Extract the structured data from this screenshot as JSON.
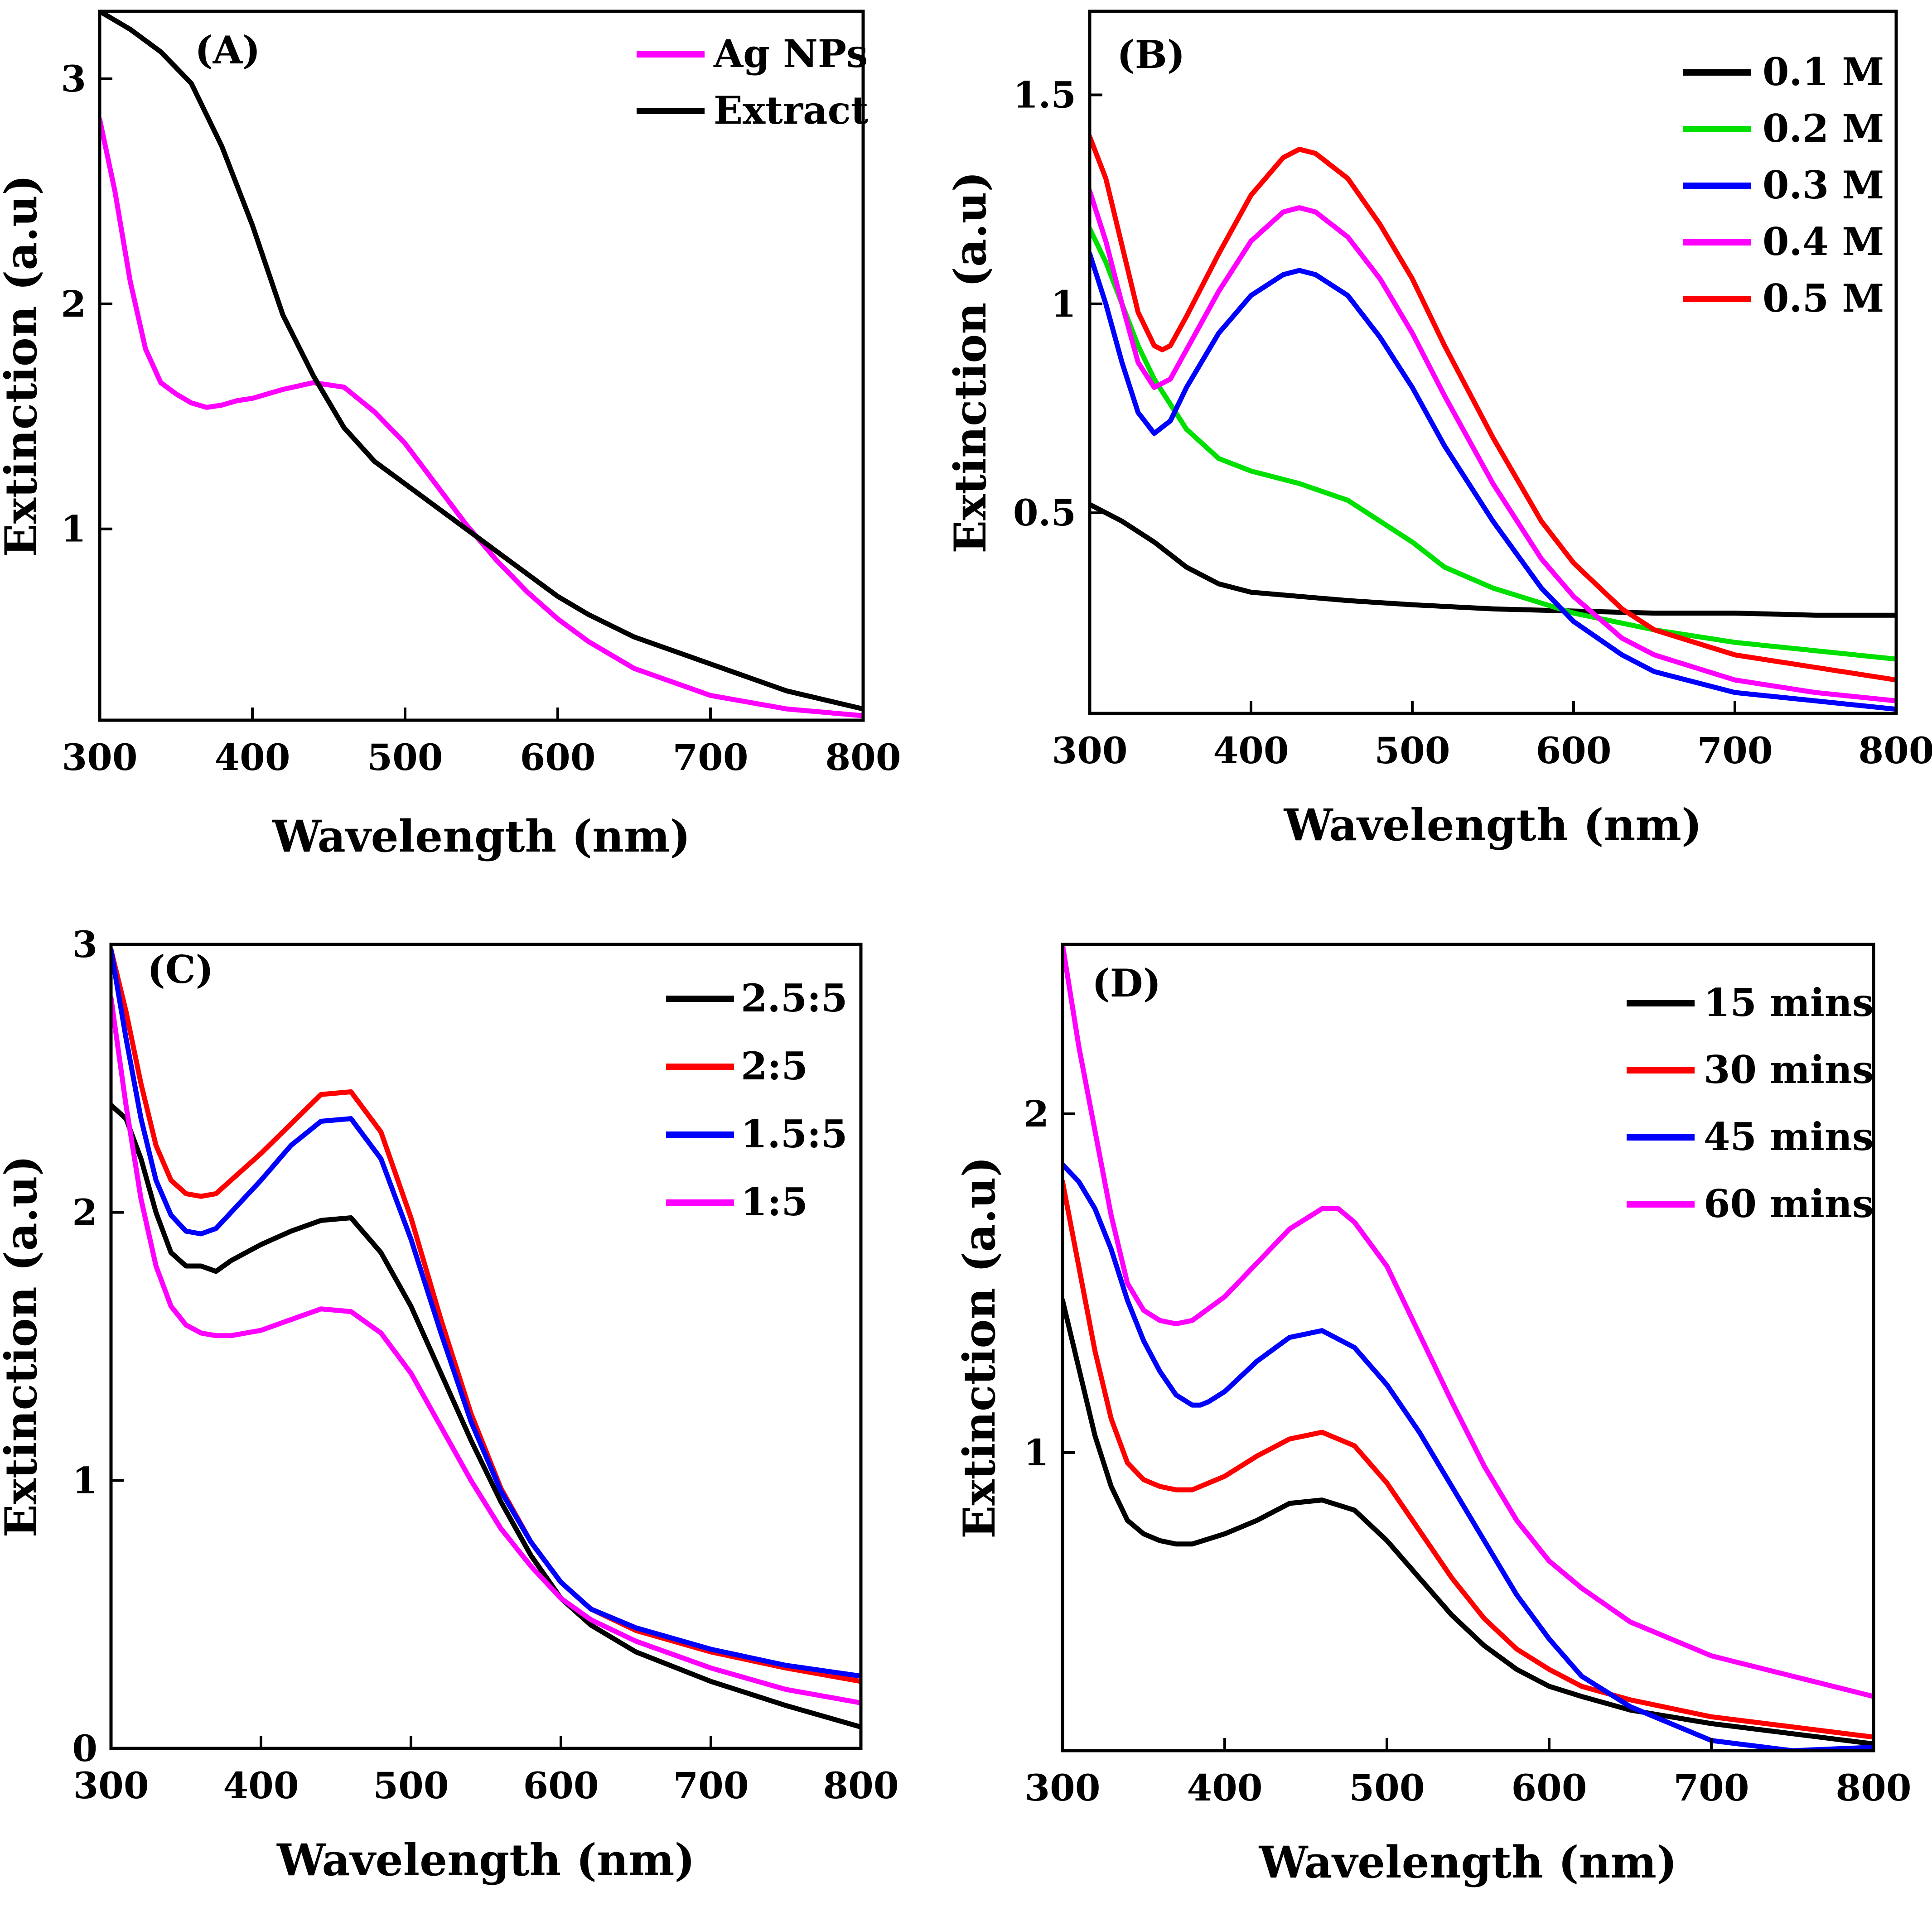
{
  "chart_data": [
    {
      "type": "line",
      "panel": "(A)",
      "title": "",
      "xlabel": "Wavelength (nm)",
      "ylabel": "Extinction (a.u)",
      "xlim": [
        300,
        800
      ],
      "ylim": [
        0.15,
        3.3
      ],
      "xticks": [
        300,
        400,
        500,
        600,
        700,
        800
      ],
      "yticks": [
        1,
        2,
        3
      ],
      "legend_position": "top-right",
      "series": [
        {
          "name": "Ag NPs",
          "color": "#ff00ff",
          "x": [
            300,
            310,
            320,
            330,
            340,
            350,
            360,
            370,
            380,
            390,
            400,
            420,
            440,
            460,
            480,
            500,
            520,
            540,
            560,
            580,
            600,
            620,
            650,
            700,
            750,
            800
          ],
          "y": [
            2.82,
            2.5,
            2.1,
            1.8,
            1.65,
            1.6,
            1.56,
            1.54,
            1.55,
            1.57,
            1.58,
            1.62,
            1.65,
            1.63,
            1.52,
            1.38,
            1.2,
            1.02,
            0.86,
            0.72,
            0.6,
            0.5,
            0.38,
            0.26,
            0.2,
            0.17
          ]
        },
        {
          "name": "Extract",
          "color": "#000000",
          "x": [
            300,
            320,
            340,
            360,
            380,
            400,
            420,
            440,
            460,
            480,
            500,
            520,
            540,
            560,
            580,
            600,
            620,
            650,
            700,
            750,
            800
          ],
          "y": [
            3.3,
            3.22,
            3.12,
            2.98,
            2.7,
            2.35,
            1.95,
            1.68,
            1.45,
            1.3,
            1.2,
            1.1,
            1.0,
            0.9,
            0.8,
            0.7,
            0.62,
            0.52,
            0.4,
            0.28,
            0.2
          ]
        }
      ]
    },
    {
      "type": "line",
      "panel": "(B)",
      "title": "",
      "xlabel": "Wavelength (nm)",
      "ylabel": "Extinction (a.u)",
      "xlim": [
        300,
        800
      ],
      "ylim": [
        0.02,
        1.7
      ],
      "xticks": [
        300,
        400,
        500,
        600,
        700,
        800
      ],
      "yticks": [
        0.5,
        1.0,
        1.5
      ],
      "legend_position": "top-right",
      "series": [
        {
          "name": "0.1 M",
          "color": "#000000",
          "x": [
            300,
            320,
            340,
            360,
            380,
            400,
            430,
            460,
            500,
            550,
            600,
            650,
            700,
            750,
            800
          ],
          "y": [
            0.52,
            0.48,
            0.43,
            0.37,
            0.33,
            0.31,
            0.3,
            0.29,
            0.28,
            0.27,
            0.265,
            0.26,
            0.26,
            0.255,
            0.255
          ]
        },
        {
          "name": "0.2 M",
          "color": "#00e000",
          "x": [
            300,
            310,
            320,
            330,
            340,
            350,
            360,
            380,
            400,
            430,
            460,
            480,
            500,
            520,
            550,
            600,
            650,
            700,
            750,
            800
          ],
          "y": [
            1.18,
            1.1,
            1.0,
            0.9,
            0.82,
            0.76,
            0.7,
            0.63,
            0.6,
            0.57,
            0.53,
            0.48,
            0.43,
            0.37,
            0.32,
            0.26,
            0.22,
            0.19,
            0.17,
            0.15
          ]
        },
        {
          "name": "0.3 M",
          "color": "#0000ff",
          "x": [
            300,
            310,
            320,
            330,
            340,
            350,
            360,
            380,
            400,
            420,
            430,
            440,
            460,
            480,
            500,
            520,
            550,
            580,
            600,
            630,
            650,
            700,
            750,
            800
          ],
          "y": [
            1.12,
            1.0,
            0.86,
            0.74,
            0.69,
            0.72,
            0.8,
            0.93,
            1.02,
            1.07,
            1.08,
            1.07,
            1.02,
            0.92,
            0.8,
            0.66,
            0.48,
            0.32,
            0.24,
            0.16,
            0.12,
            0.07,
            0.05,
            0.03
          ]
        },
        {
          "name": "0.4 M",
          "color": "#ff00ff",
          "x": [
            300,
            310,
            320,
            330,
            340,
            350,
            360,
            380,
            400,
            420,
            430,
            440,
            460,
            480,
            500,
            520,
            550,
            580,
            600,
            630,
            650,
            700,
            750,
            800
          ],
          "y": [
            1.27,
            1.15,
            1.0,
            0.86,
            0.8,
            0.82,
            0.89,
            1.03,
            1.15,
            1.22,
            1.23,
            1.22,
            1.16,
            1.06,
            0.93,
            0.78,
            0.57,
            0.39,
            0.3,
            0.2,
            0.16,
            0.1,
            0.07,
            0.05
          ]
        },
        {
          "name": "0.5 M",
          "color": "#ff0000",
          "x": [
            300,
            310,
            320,
            330,
            340,
            345,
            350,
            360,
            380,
            400,
            420,
            430,
            440,
            460,
            480,
            500,
            520,
            550,
            580,
            600,
            630,
            650,
            700,
            750,
            800
          ],
          "y": [
            1.4,
            1.3,
            1.14,
            0.98,
            0.9,
            0.89,
            0.9,
            0.97,
            1.12,
            1.26,
            1.35,
            1.37,
            1.36,
            1.3,
            1.19,
            1.06,
            0.9,
            0.68,
            0.48,
            0.38,
            0.27,
            0.22,
            0.16,
            0.13,
            0.1
          ]
        }
      ]
    },
    {
      "type": "line",
      "panel": "(C)",
      "title": "",
      "xlabel": "Wavelength (nm)",
      "ylabel": "Extinction (a.u)",
      "xlim": [
        300,
        800
      ],
      "ylim": [
        0,
        3
      ],
      "xticks": [
        300,
        400,
        500,
        600,
        700,
        800
      ],
      "yticks": [
        0,
        1,
        2,
        3
      ],
      "legend_position": "top-right",
      "series": [
        {
          "name": "2.5:5",
          "color": "#000000",
          "x": [
            300,
            310,
            320,
            330,
            340,
            350,
            360,
            370,
            380,
            390,
            400,
            420,
            440,
            460,
            480,
            500,
            520,
            540,
            560,
            580,
            600,
            620,
            650,
            700,
            750,
            800
          ],
          "y": [
            2.4,
            2.35,
            2.2,
            2.0,
            1.85,
            1.8,
            1.8,
            1.78,
            1.82,
            1.85,
            1.88,
            1.93,
            1.97,
            1.98,
            1.85,
            1.65,
            1.4,
            1.15,
            0.92,
            0.72,
            0.56,
            0.46,
            0.36,
            0.25,
            0.16,
            0.08
          ]
        },
        {
          "name": "2:5",
          "color": "#ff0000",
          "x": [
            300,
            310,
            320,
            330,
            340,
            350,
            360,
            370,
            380,
            400,
            420,
            440,
            460,
            480,
            500,
            520,
            540,
            560,
            580,
            600,
            620,
            650,
            700,
            750,
            800
          ],
          "y": [
            2.98,
            2.75,
            2.48,
            2.25,
            2.12,
            2.07,
            2.06,
            2.07,
            2.12,
            2.22,
            2.33,
            2.44,
            2.45,
            2.3,
            1.98,
            1.6,
            1.25,
            0.97,
            0.77,
            0.62,
            0.52,
            0.44,
            0.36,
            0.3,
            0.25
          ]
        },
        {
          "name": "1.5:5",
          "color": "#0000ff",
          "x": [
            300,
            310,
            320,
            330,
            340,
            350,
            360,
            370,
            380,
            400,
            420,
            440,
            460,
            480,
            500,
            520,
            540,
            560,
            580,
            600,
            620,
            650,
            700,
            750,
            800
          ],
          "y": [
            2.98,
            2.65,
            2.35,
            2.12,
            1.99,
            1.93,
            1.92,
            1.94,
            2.0,
            2.12,
            2.25,
            2.34,
            2.35,
            2.2,
            1.9,
            1.55,
            1.22,
            0.96,
            0.77,
            0.62,
            0.52,
            0.45,
            0.37,
            0.31,
            0.27
          ]
        },
        {
          "name": "1:5",
          "color": "#ff00ff",
          "x": [
            300,
            310,
            320,
            330,
            340,
            350,
            360,
            370,
            380,
            400,
            420,
            440,
            460,
            480,
            500,
            520,
            540,
            560,
            580,
            600,
            620,
            650,
            700,
            750,
            800
          ],
          "y": [
            2.8,
            2.4,
            2.05,
            1.8,
            1.65,
            1.58,
            1.55,
            1.54,
            1.54,
            1.56,
            1.6,
            1.64,
            1.63,
            1.55,
            1.4,
            1.2,
            1.0,
            0.82,
            0.68,
            0.56,
            0.48,
            0.4,
            0.3,
            0.22,
            0.17
          ]
        }
      ]
    },
    {
      "type": "line",
      "panel": "(D)",
      "title": "",
      "xlabel": "Wavelength (nm)",
      "ylabel": "Extinction (a.u)",
      "xlim": [
        300,
        800
      ],
      "ylim": [
        0.12,
        2.5
      ],
      "xticks": [
        300,
        400,
        500,
        600,
        700,
        800
      ],
      "yticks": [
        1,
        2
      ],
      "legend_position": "top-right",
      "series": [
        {
          "name": "15 mins",
          "color": "#000000",
          "x": [
            300,
            310,
            320,
            330,
            340,
            350,
            360,
            370,
            380,
            400,
            420,
            440,
            460,
            480,
            500,
            520,
            540,
            560,
            580,
            600,
            620,
            650,
            700,
            750,
            800
          ],
          "y": [
            1.45,
            1.25,
            1.05,
            0.9,
            0.8,
            0.76,
            0.74,
            0.73,
            0.73,
            0.76,
            0.8,
            0.85,
            0.86,
            0.83,
            0.74,
            0.63,
            0.52,
            0.43,
            0.36,
            0.31,
            0.28,
            0.24,
            0.2,
            0.17,
            0.14
          ]
        },
        {
          "name": "30 mins",
          "color": "#ff0000",
          "x": [
            300,
            310,
            320,
            330,
            340,
            350,
            360,
            370,
            380,
            400,
            420,
            440,
            460,
            480,
            500,
            520,
            540,
            560,
            580,
            600,
            620,
            650,
            700,
            750,
            800
          ],
          "y": [
            1.8,
            1.55,
            1.3,
            1.1,
            0.97,
            0.92,
            0.9,
            0.89,
            0.89,
            0.93,
            0.99,
            1.04,
            1.06,
            1.02,
            0.91,
            0.77,
            0.63,
            0.51,
            0.42,
            0.36,
            0.31,
            0.27,
            0.22,
            0.19,
            0.16
          ]
        },
        {
          "name": "45 mins",
          "color": "#0000ff",
          "x": [
            300,
            310,
            320,
            330,
            340,
            350,
            360,
            370,
            380,
            385,
            390,
            400,
            420,
            440,
            460,
            480,
            500,
            520,
            540,
            560,
            580,
            600,
            620,
            650,
            700,
            750,
            800
          ],
          "y": [
            1.85,
            1.8,
            1.72,
            1.6,
            1.45,
            1.33,
            1.24,
            1.17,
            1.14,
            1.14,
            1.15,
            1.18,
            1.27,
            1.34,
            1.36,
            1.31,
            1.2,
            1.06,
            0.9,
            0.74,
            0.58,
            0.45,
            0.34,
            0.25,
            0.15,
            0.12,
            0.13
          ]
        },
        {
          "name": "60 mins",
          "color": "#ff00ff",
          "x": [
            300,
            305,
            310,
            320,
            330,
            340,
            350,
            360,
            370,
            380,
            400,
            420,
            440,
            460,
            470,
            480,
            500,
            520,
            540,
            560,
            580,
            600,
            620,
            650,
            700,
            750,
            800
          ],
          "y": [
            2.5,
            2.35,
            2.2,
            1.95,
            1.7,
            1.5,
            1.42,
            1.39,
            1.38,
            1.39,
            1.46,
            1.56,
            1.66,
            1.72,
            1.72,
            1.68,
            1.55,
            1.35,
            1.15,
            0.96,
            0.8,
            0.68,
            0.6,
            0.5,
            0.4,
            0.34,
            0.28
          ]
        }
      ]
    }
  ]
}
